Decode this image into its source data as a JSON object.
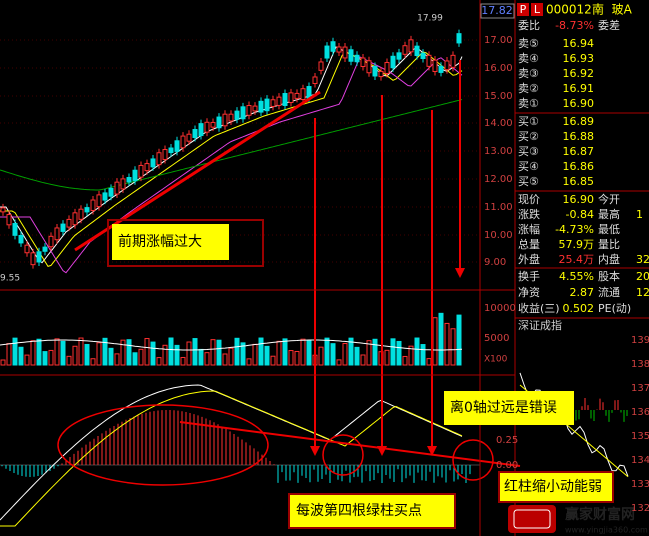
{
  "header": {
    "p": "P",
    "l": "L",
    "code": "000012",
    "name": "南  玻A"
  },
  "price_chart": {
    "last_price": "17.82",
    "high_label": "17.99",
    "low_label": "9.55",
    "price_axis": [
      "17.00",
      "16.00",
      "15.00",
      "14.00",
      "13.00",
      "12.00",
      "11.00",
      "10.00",
      "9.00"
    ],
    "volume_axis": [
      "10000",
      "5000"
    ],
    "volume_unit": "X100",
    "macd_axis": [
      "0.25",
      "0.00"
    ]
  },
  "quote": {
    "ratio": {
      "label": "委比",
      "value": "-8.73%",
      "label2": "委差"
    },
    "asks": [
      {
        "label": "卖⑤",
        "price": "16.94"
      },
      {
        "label": "卖④",
        "price": "16.93"
      },
      {
        "label": "卖③",
        "price": "16.92"
      },
      {
        "label": "卖②",
        "price": "16.91"
      },
      {
        "label": "卖①",
        "price": "16.90"
      }
    ],
    "bids": [
      {
        "label": "买①",
        "price": "16.89"
      },
      {
        "label": "买②",
        "price": "16.88"
      },
      {
        "label": "买③",
        "price": "16.87"
      },
      {
        "label": "买④",
        "price": "16.86"
      },
      {
        "label": "买⑤",
        "price": "16.85"
      }
    ],
    "stats": [
      [
        "现价",
        "16.90",
        "今开"
      ],
      [
        "涨跌",
        "-0.84",
        "最高",
        "1"
      ],
      [
        "涨幅",
        "-4.73%",
        "最低"
      ],
      [
        "总量",
        "57.9万",
        "量比"
      ],
      [
        "外盘",
        "25.4万",
        "内盘",
        "32"
      ],
      [
        "换手",
        "4.55%",
        "股本",
        "20"
      ],
      [
        "净资",
        "2.87",
        "流通",
        "12"
      ],
      [
        "收益(三)",
        "0.502",
        "PE(动)"
      ]
    ]
  },
  "index_panel": {
    "title": "深证成指",
    "axis": [
      "139",
      "138",
      "137",
      "136",
      "135",
      "134",
      "133",
      "132"
    ]
  },
  "annotations": {
    "rise": "前期涨幅过大",
    "far_zero": "离0轴过远是错误",
    "buy_point": "每波第四根绿柱买点",
    "weak": "红柱缩小动能弱"
  },
  "watermark": {
    "name": "赢家财富网",
    "url": "www.yingjia360.com"
  }
}
